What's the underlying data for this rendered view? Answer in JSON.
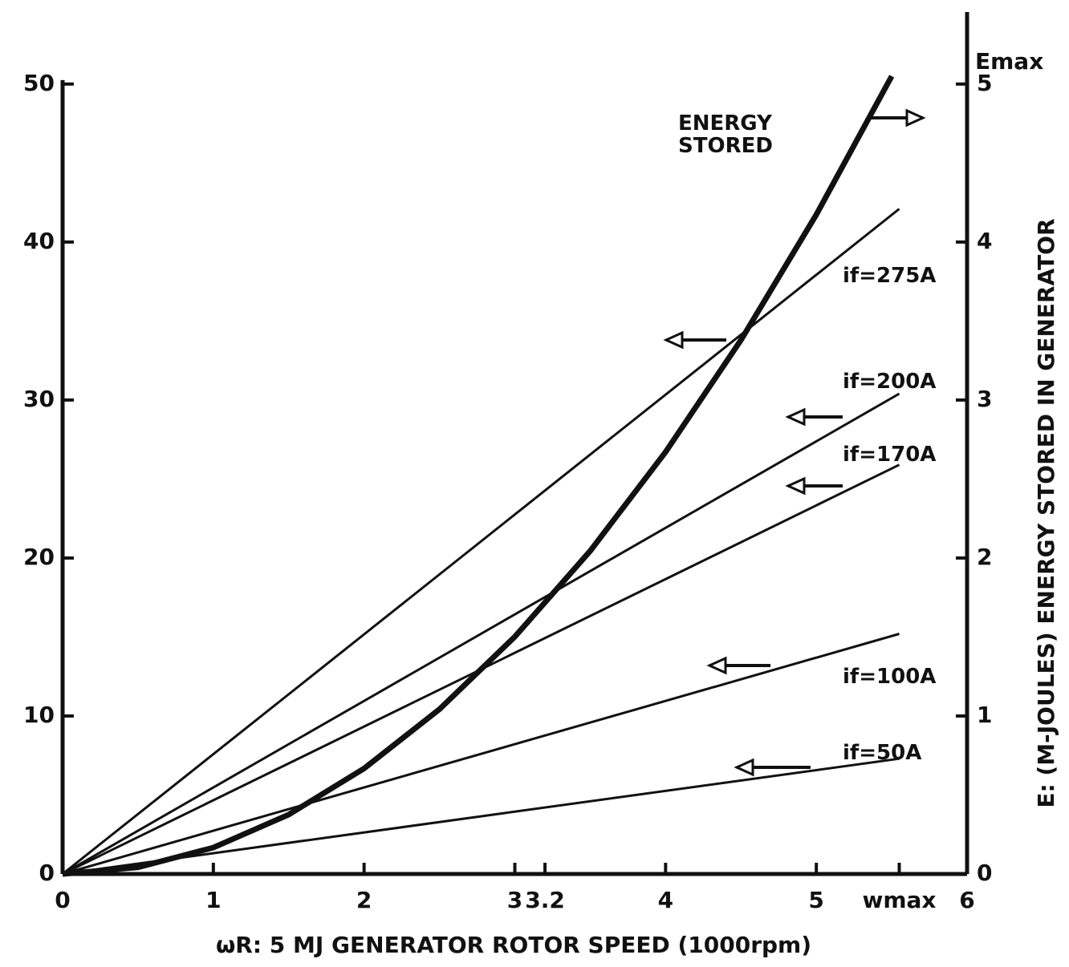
{
  "chart_data": {
    "type": "line",
    "x_label": "ωR: 5 MJ GENERATOR ROTOR SPEED (1000rpm)",
    "y2_label": "E: (M-JOULES) ENERGY STORED IN GENERATOR",
    "annotations": [
      "Emax"
    ],
    "xlim": [
      0,
      6
    ],
    "xticks": [
      0,
      1,
      2,
      3,
      3.2,
      4,
      5,
      {
        "value": 5.55,
        "label": "wmax"
      },
      6
    ],
    "ylim": [
      0,
      54
    ],
    "yticks": [
      0,
      10,
      20,
      30,
      40,
      50
    ],
    "y2lim": [
      0,
      5.4
    ],
    "y2ticks": [
      0,
      1,
      2,
      3,
      4,
      5
    ],
    "series": [
      {
        "name": "ENERGY STORED",
        "color": "#111111",
        "axis": "y2",
        "x": [
          0,
          0.5,
          1,
          1.5,
          2,
          2.5,
          3,
          3.5,
          4,
          4.5,
          5,
          5.5
        ],
        "values": [
          0,
          0.042,
          0.167,
          0.376,
          0.668,
          1.043,
          1.502,
          2.045,
          2.671,
          3.38,
          4.174,
          5.05
        ]
      },
      {
        "name": "if=275A",
        "color": "#111111",
        "x": [
          0,
          5.55
        ],
        "values": [
          0,
          42.1
        ]
      },
      {
        "name": "if=200A",
        "color": "#111111",
        "x": [
          0,
          5.55
        ],
        "values": [
          0,
          30.4
        ]
      },
      {
        "name": "if=170A",
        "color": "#111111",
        "x": [
          0,
          5.55
        ],
        "values": [
          0,
          25.9
        ]
      },
      {
        "name": "if=100A",
        "color": "#111111",
        "x": [
          0,
          5.55
        ],
        "values": [
          0,
          15.2
        ]
      },
      {
        "name": "if=50A",
        "color": "#111111",
        "x": [
          0,
          5.55
        ],
        "values": [
          0,
          7.3
        ]
      }
    ]
  }
}
